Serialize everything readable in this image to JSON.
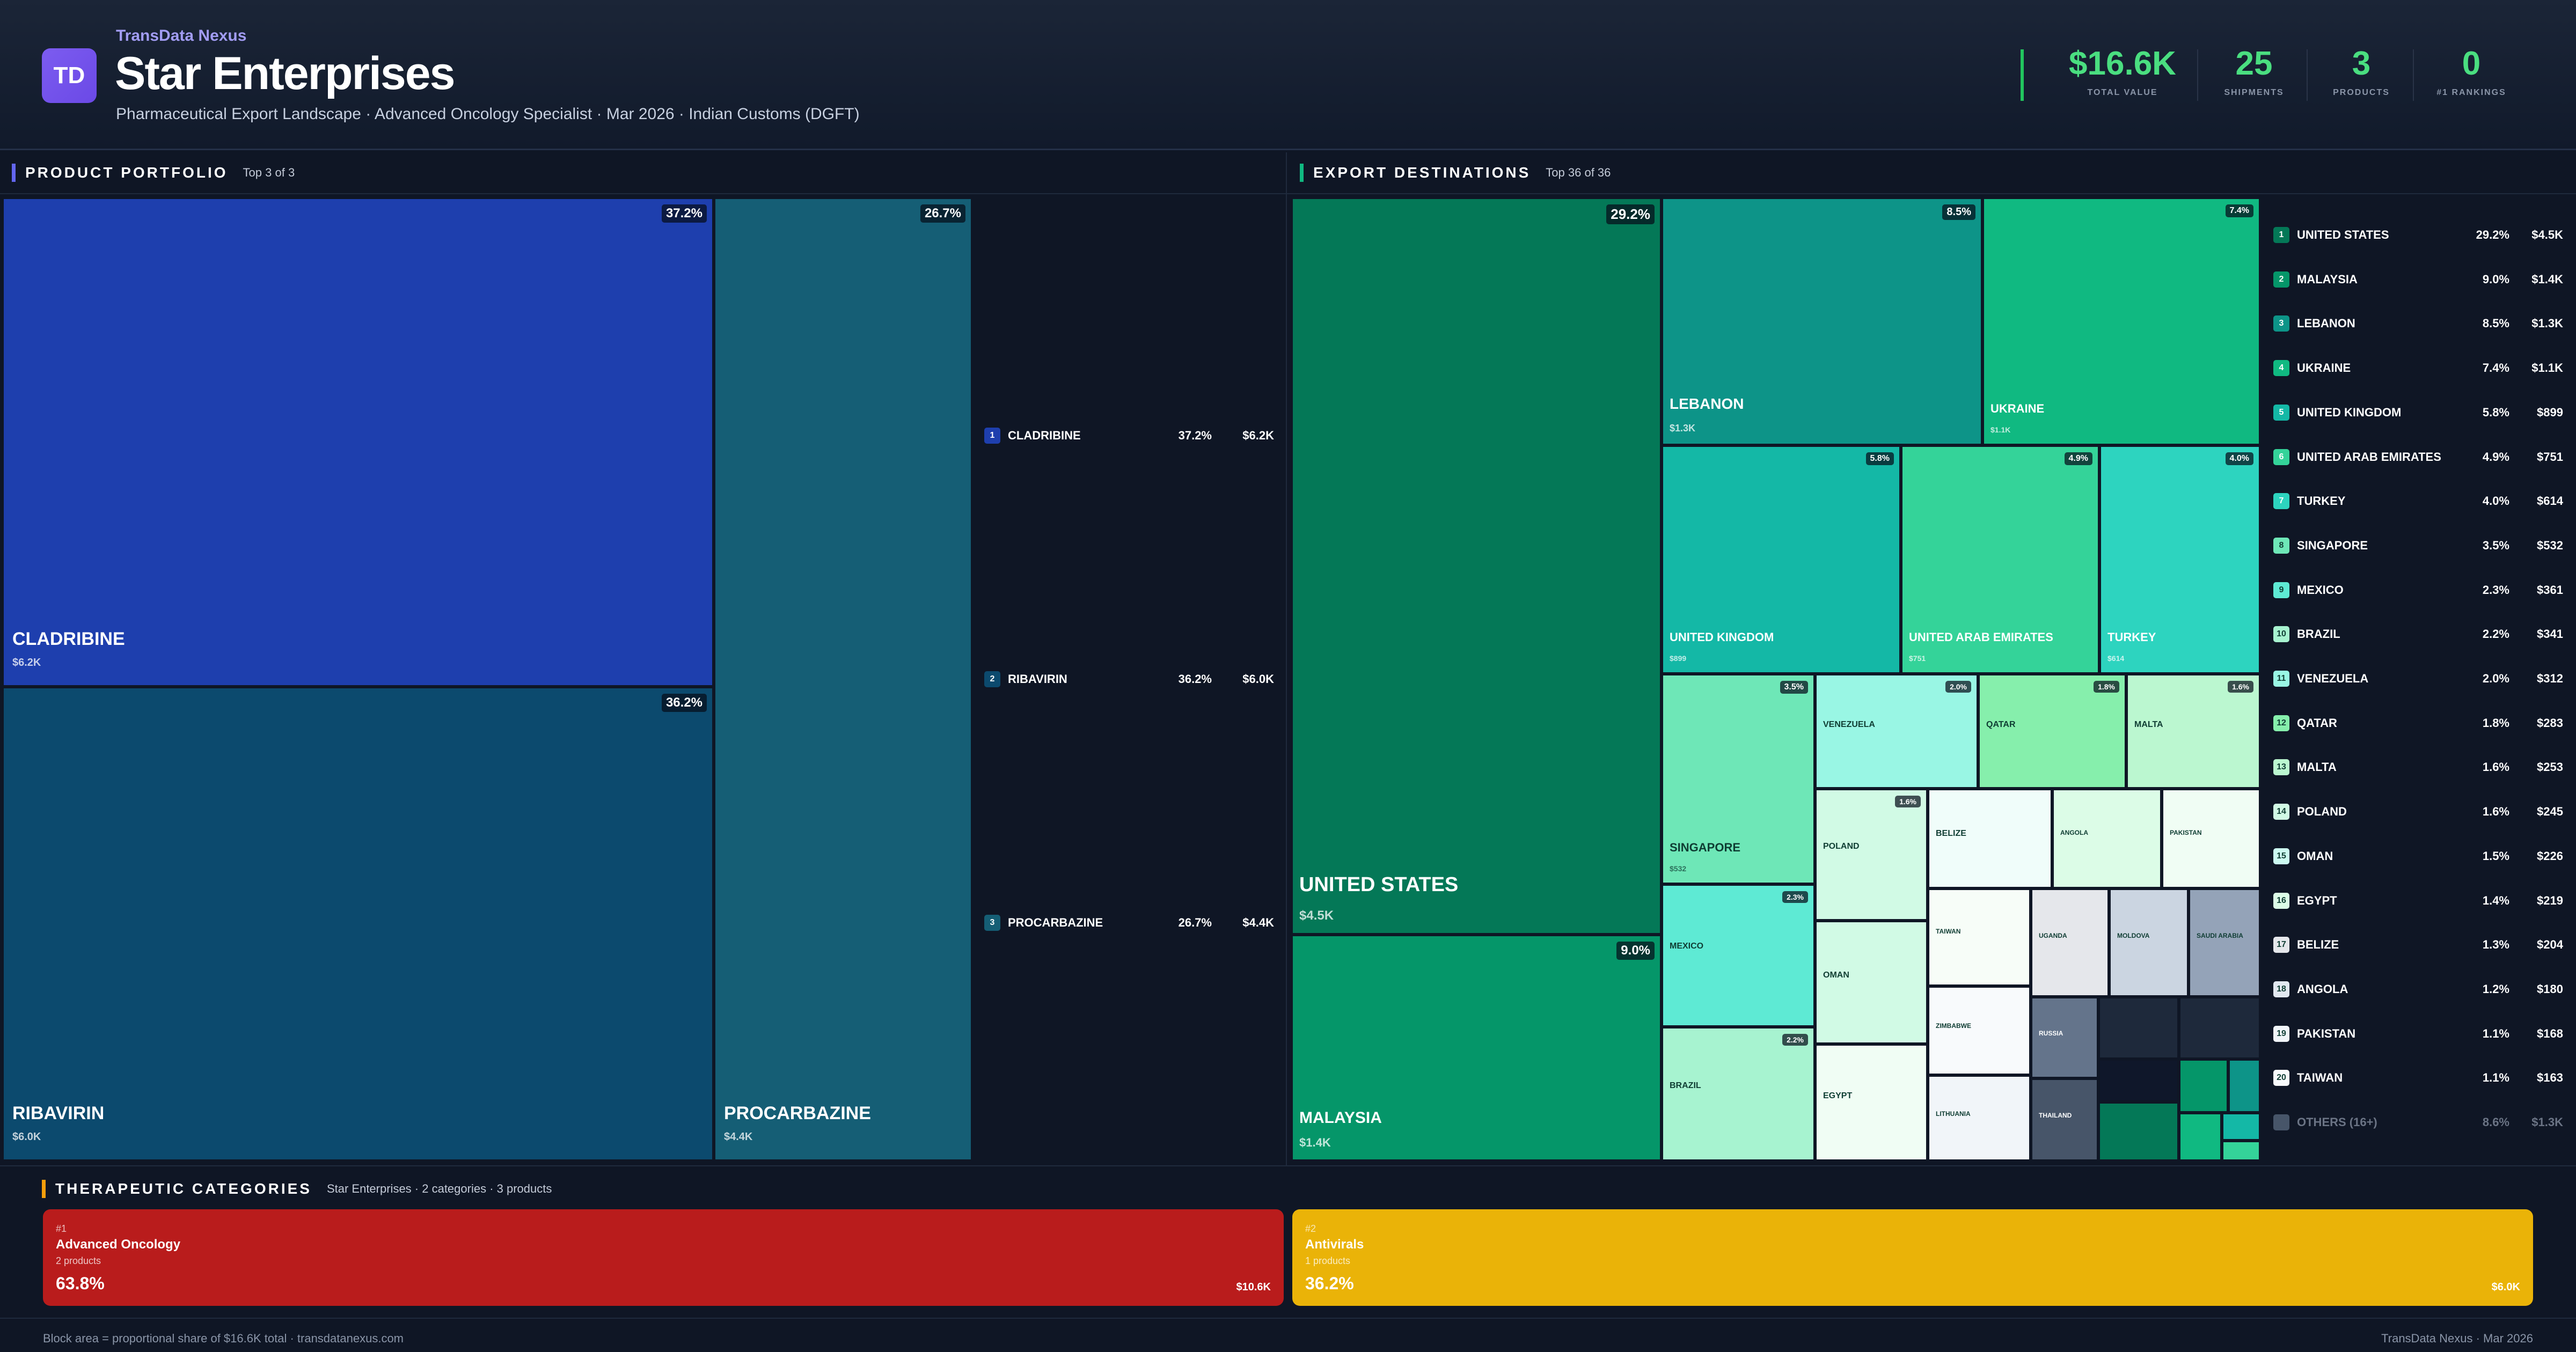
{
  "header": {
    "brand": "TransData Nexus",
    "logo_initials": "TD",
    "company": "Star Enterprises",
    "subtitle": "Pharmaceutical Export Landscape · Advanced Oncology Specialist · Mar 2026 · Indian Customs (DGFT)"
  },
  "kpis": [
    {
      "value": "$16.6K",
      "label": "TOTAL VALUE"
    },
    {
      "value": "25",
      "label": "SHIPMENTS"
    },
    {
      "value": "3",
      "label": "PRODUCTS"
    },
    {
      "value": "0",
      "label": "#1 RANKINGS"
    }
  ],
  "portfolio": {
    "title": "PRODUCT PORTFOLIO",
    "subtitle": "Top 3 of 3",
    "items": [
      {
        "rank": "1",
        "name": "CLADRIBINE",
        "share": "37.2%",
        "value": "$6.2K",
        "color": "#1e3fae"
      },
      {
        "rank": "2",
        "name": "RIBAVIRIN",
        "share": "36.2%",
        "value": "$6.0K",
        "color": "#0c4a6e"
      },
      {
        "rank": "3",
        "name": "PROCARBAZINE",
        "share": "26.7%",
        "value": "$4.4K",
        "color": "#155e75"
      }
    ]
  },
  "destinations": {
    "title": "EXPORT DESTINATIONS",
    "subtitle": "Top 36 of 36",
    "tiles": [
      {
        "name": "UNITED STATES",
        "share": "29.2%",
        "value": "$4.5K"
      },
      {
        "name": "MALAYSIA",
        "share": "9.0%",
        "value": "$1.4K"
      },
      {
        "name": "LEBANON",
        "share": "8.5%",
        "value": "$1.3K"
      },
      {
        "name": "UKRAINE",
        "share": "7.4%",
        "value": "$1.1K"
      },
      {
        "name": "UNITED KINGDOM",
        "share": "5.8%",
        "value": "$899"
      },
      {
        "name": "UNITED ARAB EMIRATES",
        "share": "4.9%",
        "value": "$751"
      },
      {
        "name": "TURKEY",
        "share": "4.0%",
        "value": "$614"
      },
      {
        "name": "SINGAPORE",
        "share": "3.5%",
        "value": "$532"
      },
      {
        "name": "VENEZUELA",
        "share": "2.0%",
        "value": ""
      },
      {
        "name": "QATAR",
        "share": "1.8%",
        "value": ""
      },
      {
        "name": "MALTA",
        "share": "1.6%",
        "value": ""
      },
      {
        "name": "MEXICO",
        "share": "2.3%",
        "value": ""
      },
      {
        "name": "POLAND",
        "share": "1.6%",
        "value": ""
      },
      {
        "name": "BELIZE",
        "share": "",
        "value": ""
      },
      {
        "name": "ANGOLA",
        "share": "",
        "value": ""
      },
      {
        "name": "PAKISTAN",
        "share": "",
        "value": ""
      },
      {
        "name": "OMAN",
        "share": "",
        "value": ""
      },
      {
        "name": "TAIWAN",
        "share": "",
        "value": ""
      },
      {
        "name": "UGANDA",
        "share": "",
        "value": ""
      },
      {
        "name": "MOLDOVA",
        "share": "",
        "value": ""
      },
      {
        "name": "SAUDI ARABIA",
        "share": "",
        "value": ""
      },
      {
        "name": "BRAZIL",
        "share": "2.2%",
        "value": ""
      },
      {
        "name": "EGYPT",
        "share": "",
        "value": ""
      },
      {
        "name": "ZIMBABWE",
        "share": "",
        "value": ""
      },
      {
        "name": "LITHUANIA",
        "share": "",
        "value": ""
      },
      {
        "name": "RUSSIA",
        "share": "",
        "value": ""
      },
      {
        "name": "THAILAND",
        "share": "",
        "value": ""
      }
    ],
    "list": [
      {
        "rank": "1",
        "name": "UNITED STATES",
        "share": "29.2%",
        "value": "$4.5K"
      },
      {
        "rank": "2",
        "name": "MALAYSIA",
        "share": "9.0%",
        "value": "$1.4K"
      },
      {
        "rank": "3",
        "name": "LEBANON",
        "share": "8.5%",
        "value": "$1.3K"
      },
      {
        "rank": "4",
        "name": "UKRAINE",
        "share": "7.4%",
        "value": "$1.1K"
      },
      {
        "rank": "5",
        "name": "UNITED KINGDOM",
        "share": "5.8%",
        "value": "$899"
      },
      {
        "rank": "6",
        "name": "UNITED ARAB EMIRATES",
        "share": "4.9%",
        "value": "$751"
      },
      {
        "rank": "7",
        "name": "TURKEY",
        "share": "4.0%",
        "value": "$614"
      },
      {
        "rank": "8",
        "name": "SINGAPORE",
        "share": "3.5%",
        "value": "$532"
      },
      {
        "rank": "9",
        "name": "MEXICO",
        "share": "2.3%",
        "value": "$361"
      },
      {
        "rank": "10",
        "name": "BRAZIL",
        "share": "2.2%",
        "value": "$341"
      },
      {
        "rank": "11",
        "name": "VENEZUELA",
        "share": "2.0%",
        "value": "$312"
      },
      {
        "rank": "12",
        "name": "QATAR",
        "share": "1.8%",
        "value": "$283"
      },
      {
        "rank": "13",
        "name": "MALTA",
        "share": "1.6%",
        "value": "$253"
      },
      {
        "rank": "14",
        "name": "POLAND",
        "share": "1.6%",
        "value": "$245"
      },
      {
        "rank": "15",
        "name": "OMAN",
        "share": "1.5%",
        "value": "$226"
      },
      {
        "rank": "16",
        "name": "EGYPT",
        "share": "1.4%",
        "value": "$219"
      },
      {
        "rank": "17",
        "name": "BELIZE",
        "share": "1.3%",
        "value": "$204"
      },
      {
        "rank": "18",
        "name": "ANGOLA",
        "share": "1.2%",
        "value": "$180"
      },
      {
        "rank": "19",
        "name": "PAKISTAN",
        "share": "1.1%",
        "value": "$168"
      },
      {
        "rank": "20",
        "name": "TAIWAN",
        "share": "1.1%",
        "value": "$163"
      },
      {
        "rank": "",
        "name": "OTHERS (16+)",
        "share": "8.6%",
        "value": "$1.3K"
      }
    ]
  },
  "categories": {
    "title": "THERAPEUTIC CATEGORIES",
    "subtitle": "Star Enterprises · 2 categories · 3 products",
    "items": [
      {
        "rank": "#1",
        "name": "Advanced Oncology",
        "products": "2 products",
        "share": "63.8%",
        "value": "$10.6K",
        "color": "#b91c1c"
      },
      {
        "rank": "#2",
        "name": "Antivirals",
        "products": "1 products",
        "share": "36.2%",
        "value": "$6.0K",
        "color": "#eab308"
      }
    ]
  },
  "footer": {
    "left": "Block area = proportional share of $16.6K total · transdatanexus.com",
    "right": "TransData Nexus · Mar 2026"
  }
}
